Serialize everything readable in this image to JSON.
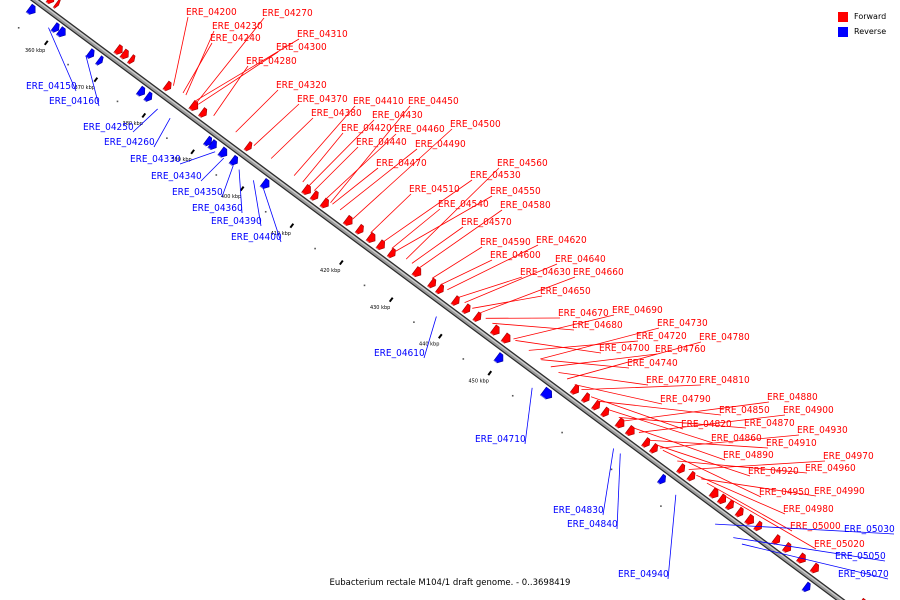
{
  "legend": {
    "forward_label": "Forward",
    "reverse_label": "Reverse",
    "forward_color": "#ff0000",
    "reverse_color": "#0000ff"
  },
  "caption": "Eubacterium rectale M104/1 draft genome. - 0..3698419",
  "scale_ticks": [
    "360 kbp",
    "370 kbp",
    "380 kbp",
    "390 kbp",
    "400 kbp",
    "410 kbp",
    "420 kbp",
    "430 kbp",
    "440 kbp",
    "450 kbp"
  ],
  "genes": [
    {
      "id": "ERE_04150",
      "strand": "reverse"
    },
    {
      "id": "ERE_04160",
      "strand": "reverse"
    },
    {
      "id": "ERE_04200",
      "strand": "forward"
    },
    {
      "id": "ERE_04230",
      "strand": "forward"
    },
    {
      "id": "ERE_04240",
      "strand": "forward"
    },
    {
      "id": "ERE_04250",
      "strand": "reverse"
    },
    {
      "id": "ERE_04260",
      "strand": "reverse"
    },
    {
      "id": "ERE_04270",
      "strand": "forward"
    },
    {
      "id": "ERE_04280",
      "strand": "forward"
    },
    {
      "id": "ERE_04300",
      "strand": "forward"
    },
    {
      "id": "ERE_04310",
      "strand": "forward"
    },
    {
      "id": "ERE_04320",
      "strand": "forward"
    },
    {
      "id": "ERE_04330",
      "strand": "reverse"
    },
    {
      "id": "ERE_04340",
      "strand": "reverse"
    },
    {
      "id": "ERE_04350",
      "strand": "reverse"
    },
    {
      "id": "ERE_04360",
      "strand": "reverse"
    },
    {
      "id": "ERE_04370",
      "strand": "forward"
    },
    {
      "id": "ERE_04380",
      "strand": "forward"
    },
    {
      "id": "ERE_04390",
      "strand": "reverse"
    },
    {
      "id": "ERE_04400",
      "strand": "reverse"
    },
    {
      "id": "ERE_04410",
      "strand": "forward"
    },
    {
      "id": "ERE_04420",
      "strand": "forward"
    },
    {
      "id": "ERE_04430",
      "strand": "forward"
    },
    {
      "id": "ERE_04440",
      "strand": "forward"
    },
    {
      "id": "ERE_04450",
      "strand": "forward"
    },
    {
      "id": "ERE_04460",
      "strand": "forward"
    },
    {
      "id": "ERE_04470",
      "strand": "forward"
    },
    {
      "id": "ERE_04490",
      "strand": "forward"
    },
    {
      "id": "ERE_04500",
      "strand": "forward"
    },
    {
      "id": "ERE_04510",
      "strand": "forward"
    },
    {
      "id": "ERE_04530",
      "strand": "forward"
    },
    {
      "id": "ERE_04540",
      "strand": "forward"
    },
    {
      "id": "ERE_04550",
      "strand": "forward"
    },
    {
      "id": "ERE_04560",
      "strand": "forward"
    },
    {
      "id": "ERE_04570",
      "strand": "forward"
    },
    {
      "id": "ERE_04580",
      "strand": "forward"
    },
    {
      "id": "ERE_04590",
      "strand": "forward"
    },
    {
      "id": "ERE_04600",
      "strand": "forward"
    },
    {
      "id": "ERE_04610",
      "strand": "reverse"
    },
    {
      "id": "ERE_04620",
      "strand": "forward"
    },
    {
      "id": "ERE_04630",
      "strand": "forward"
    },
    {
      "id": "ERE_04640",
      "strand": "forward"
    },
    {
      "id": "ERE_04650",
      "strand": "forward"
    },
    {
      "id": "ERE_04660",
      "strand": "forward"
    },
    {
      "id": "ERE_04670",
      "strand": "forward"
    },
    {
      "id": "ERE_04680",
      "strand": "forward"
    },
    {
      "id": "ERE_04690",
      "strand": "forward"
    },
    {
      "id": "ERE_04700",
      "strand": "forward"
    },
    {
      "id": "ERE_04710",
      "strand": "reverse"
    },
    {
      "id": "ERE_04720",
      "strand": "forward"
    },
    {
      "id": "ERE_04730",
      "strand": "forward"
    },
    {
      "id": "ERE_04740",
      "strand": "forward"
    },
    {
      "id": "ERE_04760",
      "strand": "forward"
    },
    {
      "id": "ERE_04770",
      "strand": "forward"
    },
    {
      "id": "ERE_04780",
      "strand": "forward"
    },
    {
      "id": "ERE_04790",
      "strand": "forward"
    },
    {
      "id": "ERE_04810",
      "strand": "forward"
    },
    {
      "id": "ERE_04820",
      "strand": "forward"
    },
    {
      "id": "ERE_04830",
      "strand": "reverse"
    },
    {
      "id": "ERE_04840",
      "strand": "reverse"
    },
    {
      "id": "ERE_04850",
      "strand": "forward"
    },
    {
      "id": "ERE_04860",
      "strand": "forward"
    },
    {
      "id": "ERE_04870",
      "strand": "forward"
    },
    {
      "id": "ERE_04880",
      "strand": "forward"
    },
    {
      "id": "ERE_04890",
      "strand": "forward"
    },
    {
      "id": "ERE_04900",
      "strand": "forward"
    },
    {
      "id": "ERE_04910",
      "strand": "forward"
    },
    {
      "id": "ERE_04920",
      "strand": "forward"
    },
    {
      "id": "ERE_04930",
      "strand": "forward"
    },
    {
      "id": "ERE_04940",
      "strand": "reverse"
    },
    {
      "id": "ERE_04950",
      "strand": "forward"
    },
    {
      "id": "ERE_04960",
      "strand": "forward"
    },
    {
      "id": "ERE_04970",
      "strand": "forward"
    },
    {
      "id": "ERE_04980",
      "strand": "forward"
    },
    {
      "id": "ERE_04990",
      "strand": "forward"
    },
    {
      "id": "ERE_05000",
      "strand": "forward"
    },
    {
      "id": "ERE_05020",
      "strand": "forward"
    },
    {
      "id": "ERE_05030",
      "strand": "reverse"
    },
    {
      "id": "ERE_05050",
      "strand": "reverse"
    },
    {
      "id": "ERE_05070",
      "strand": "reverse"
    }
  ]
}
